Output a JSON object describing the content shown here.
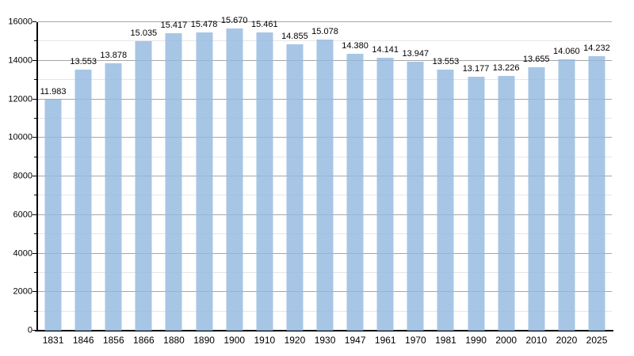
{
  "chart_data": {
    "type": "bar",
    "title": "",
    "categories": [
      "1831",
      "1846",
      "1856",
      "1866",
      "1880",
      "1890",
      "1900",
      "1910",
      "1920",
      "1930",
      "1947",
      "1961",
      "1970",
      "1981",
      "1990",
      "2000",
      "2010",
      "2020",
      "2025"
    ],
    "values": [
      11983,
      13553,
      13878,
      15035,
      15417,
      15478,
      15670,
      15461,
      14855,
      15078,
      14380,
      14141,
      13947,
      13553,
      13177,
      13226,
      13655,
      14060,
      14232
    ],
    "bar_labels": [
      "11.983",
      "13.553",
      "13.878",
      "15.035",
      "15.417",
      "15.478",
      "15.670",
      "15.461",
      "14.855",
      "15.078",
      "14.380",
      "14.141",
      "13.947",
      "13.553",
      "13.177",
      "13.226",
      "13.655",
      "14.060",
      "14.232"
    ],
    "xlabel": "",
    "ylabel": "",
    "ylim": [
      0,
      16000
    ],
    "y_major_step": 2000,
    "y_minor_step": 1000,
    "y_tick_labels": [
      "0",
      "2000",
      "4000",
      "6000",
      "8000",
      "10000",
      "12000",
      "14000",
      "16000"
    ],
    "grid": true,
    "legend_position": "none",
    "colors": {
      "bar_fill": "#a9c7e6",
      "gridline_major": "#a6a6a6",
      "gridline_minor": "#e6e6e6",
      "axis": "#000000",
      "text": "#000000",
      "background": "#ffffff"
    }
  }
}
